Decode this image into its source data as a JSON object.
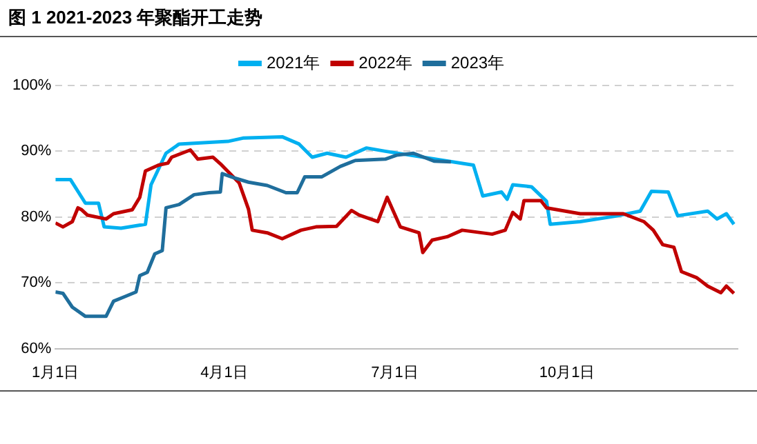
{
  "chart_data": {
    "type": "line",
    "title": "图 1 2021-2023 年聚酯开工走势",
    "xlim": [
      "--01-01",
      "--12-31"
    ],
    "xticks": [
      {
        "value": "--01-01",
        "label": "1月1日"
      },
      {
        "value": "--04-01",
        "label": "4月1日"
      },
      {
        "value": "--07-01",
        "label": "7月1日"
      },
      {
        "value": "--10-01",
        "label": "10月1日"
      }
    ],
    "ylim": [
      60,
      100
    ],
    "yticks": [
      {
        "value": 60,
        "label": "60%"
      },
      {
        "value": 70,
        "label": "70%"
      },
      {
        "value": 80,
        "label": "80%"
      },
      {
        "value": 90,
        "label": "90%"
      },
      {
        "value": 100,
        "label": "100%"
      }
    ],
    "grid": "y",
    "legend": "top",
    "series": [
      {
        "name": "2021年",
        "color": "#00b0f0",
        "x": [
          "--01-01",
          "--01-09",
          "--01-17",
          "--01-24",
          "--01-27",
          "--02-05",
          "--02-18",
          "--02-21",
          "--03-01",
          "--03-08",
          "--04-03",
          "--04-11",
          "--05-02",
          "--05-11",
          "--05-18",
          "--05-26",
          "--06-05",
          "--06-16",
          "--06-26",
          "--08-12",
          "--08-17",
          "--08-27",
          "--08-30",
          "--09-02",
          "--09-12",
          "--09-20",
          "--09-22",
          "--10-08",
          "--10-26",
          "--11-09",
          "--11-15",
          "--11-24",
          "--11-29",
          "--12-15",
          "--12-20",
          "--12-25",
          "--12-29"
        ],
        "values": [
          85.7,
          85.7,
          82.1,
          82.1,
          78.5,
          78.3,
          78.9,
          84.9,
          89.7,
          91.1,
          91.5,
          92.0,
          92.2,
          91.1,
          89.1,
          89.7,
          89.1,
          90.5,
          90.0,
          87.9,
          83.2,
          83.8,
          82.7,
          84.9,
          84.6,
          82.4,
          78.9,
          79.3,
          80.1,
          80.9,
          83.9,
          83.8,
          80.2,
          80.9,
          79.7,
          80.5,
          78.9
        ]
      },
      {
        "name": "2022年",
        "color": "#c00000",
        "x": [
          "--01-01",
          "--01-05",
          "--01-10",
          "--01-13",
          "--01-15",
          "--01-18",
          "--01-28",
          "--02-01",
          "--02-11",
          "--02-15",
          "--02-18",
          "--02-25",
          "--03-02",
          "--03-04",
          "--03-14",
          "--03-18",
          "--03-26",
          "--03-30",
          "--04-09",
          "--04-14",
          "--04-16",
          "--04-24",
          "--05-02",
          "--05-12",
          "--05-20",
          "--05-31",
          "--06-08",
          "--06-12",
          "--06-22",
          "--06-27",
          "--07-04",
          "--07-14",
          "--07-16",
          "--07-21",
          "--07-29",
          "--08-06",
          "--08-22",
          "--08-29",
          "--09-02",
          "--09-06",
          "--09-08",
          "--09-17",
          "--09-20",
          "--10-08",
          "--10-31",
          "--11-11",
          "--11-16",
          "--11-21",
          "--11-27",
          "--12-01",
          "--12-09",
          "--12-15",
          "--12-22",
          "--12-25",
          "--12-29"
        ],
        "values": [
          79.1,
          78.5,
          79.3,
          81.4,
          81.1,
          80.3,
          79.7,
          80.5,
          81.1,
          83.0,
          87.0,
          87.9,
          88.2,
          89.1,
          90.2,
          88.8,
          89.1,
          88.1,
          85.2,
          81.2,
          78.0,
          77.6,
          76.7,
          78.0,
          78.5,
          78.6,
          81.0,
          80.3,
          79.3,
          83.0,
          78.5,
          77.6,
          74.6,
          76.5,
          77.0,
          78.0,
          77.4,
          78.0,
          80.7,
          79.7,
          82.5,
          82.5,
          81.4,
          80.5,
          80.5,
          79.3,
          78.0,
          75.8,
          75.4,
          71.7,
          70.8,
          69.5,
          68.5,
          69.5,
          68.4
        ]
      },
      {
        "name": "2023年",
        "color": "#1f6e9c",
        "x": [
          "--01-01",
          "--01-05",
          "--01-10",
          "--01-17",
          "--01-28",
          "--02-01",
          "--02-07",
          "--02-13",
          "--02-15",
          "--02-19",
          "--02-23",
          "--02-27",
          "--03-01",
          "--03-08",
          "--03-16",
          "--03-24",
          "--03-30",
          "--03-31",
          "--04-06",
          "--04-14",
          "--04-24",
          "--05-04",
          "--05-10",
          "--05-14",
          "--05-23",
          "--06-02",
          "--06-10",
          "--06-26",
          "--07-02",
          "--07-11",
          "--07-22",
          "--07-31"
        ],
        "values": [
          68.6,
          68.4,
          66.3,
          64.9,
          64.9,
          67.2,
          67.9,
          68.6,
          71.1,
          71.6,
          74.4,
          74.9,
          81.4,
          81.9,
          83.4,
          83.7,
          83.8,
          86.6,
          86.0,
          85.3,
          84.8,
          83.7,
          83.7,
          86.1,
          86.1,
          87.7,
          88.6,
          88.8,
          89.4,
          89.7,
          88.5,
          88.4
        ]
      }
    ]
  }
}
